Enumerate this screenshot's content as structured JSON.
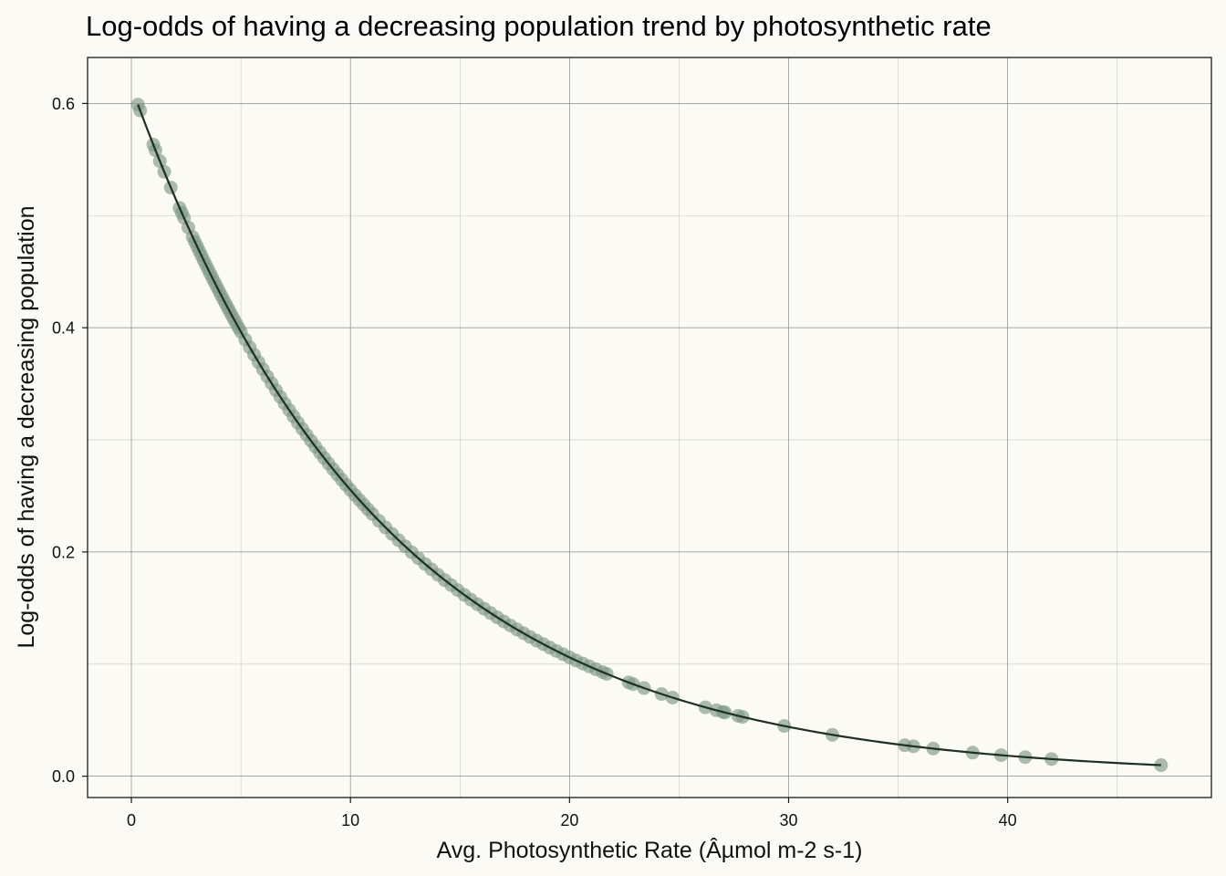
{
  "chart_data": {
    "type": "scatter",
    "title": "Log-odds of having a decreasing population trend by photosynthetic rate",
    "xlabel": "Avg. Photosynthetic Rate (Âµmol m-2 s-1)",
    "ylabel": "Log-odds of having a decreasing population",
    "xlim": [
      -2,
      49.3
    ],
    "ylim": [
      -0.019,
      0.641
    ],
    "x_ticks": [
      0,
      10,
      20,
      30,
      40
    ],
    "y_ticks": [
      0.0,
      0.2,
      0.4,
      0.6
    ],
    "y_tick_labels": [
      "0.0",
      "0.2",
      "0.4",
      "0.6"
    ],
    "grid": true,
    "model": {
      "form": "exponential_decay",
      "intercept": 0.615,
      "rate": 0.0879
    },
    "fit_line": {
      "x_start": 0.3,
      "x_end": 47.0
    },
    "points_x": [
      0.3,
      0.4,
      1.0,
      1.1,
      1.3,
      1.5,
      1.8,
      2.2,
      2.3,
      2.4,
      2.6,
      2.8,
      2.9,
      3.0,
      3.1,
      3.2,
      3.3,
      3.4,
      3.5,
      3.6,
      3.7,
      3.8,
      3.9,
      4.0,
      4.1,
      4.2,
      4.3,
      4.4,
      4.5,
      4.6,
      4.7,
      4.8,
      4.9,
      5.0,
      5.2,
      5.4,
      5.6,
      5.8,
      6.0,
      6.2,
      6.4,
      6.6,
      6.8,
      7.0,
      7.2,
      7.4,
      7.6,
      7.8,
      8.0,
      8.2,
      8.4,
      8.6,
      8.8,
      9.0,
      9.2,
      9.4,
      9.6,
      9.8,
      10.0,
      10.2,
      10.4,
      10.6,
      10.8,
      11.0,
      11.3,
      11.6,
      11.9,
      12.2,
      12.5,
      12.8,
      13.1,
      13.4,
      13.7,
      14.0,
      14.3,
      14.6,
      14.9,
      15.2,
      15.5,
      15.8,
      16.1,
      16.4,
      16.7,
      17.0,
      17.3,
      17.6,
      17.9,
      18.2,
      18.5,
      18.8,
      19.1,
      19.4,
      19.7,
      20.0,
      20.3,
      20.6,
      20.9,
      21.2,
      21.5,
      21.7,
      22.7,
      22.9,
      23.4,
      24.2,
      24.7,
      26.2,
      26.7,
      27.0,
      27.1,
      27.7,
      27.9,
      29.8,
      32.0,
      35.3,
      35.7,
      36.6,
      38.4,
      39.7,
      40.8,
      42.0,
      47.0
    ]
  }
}
